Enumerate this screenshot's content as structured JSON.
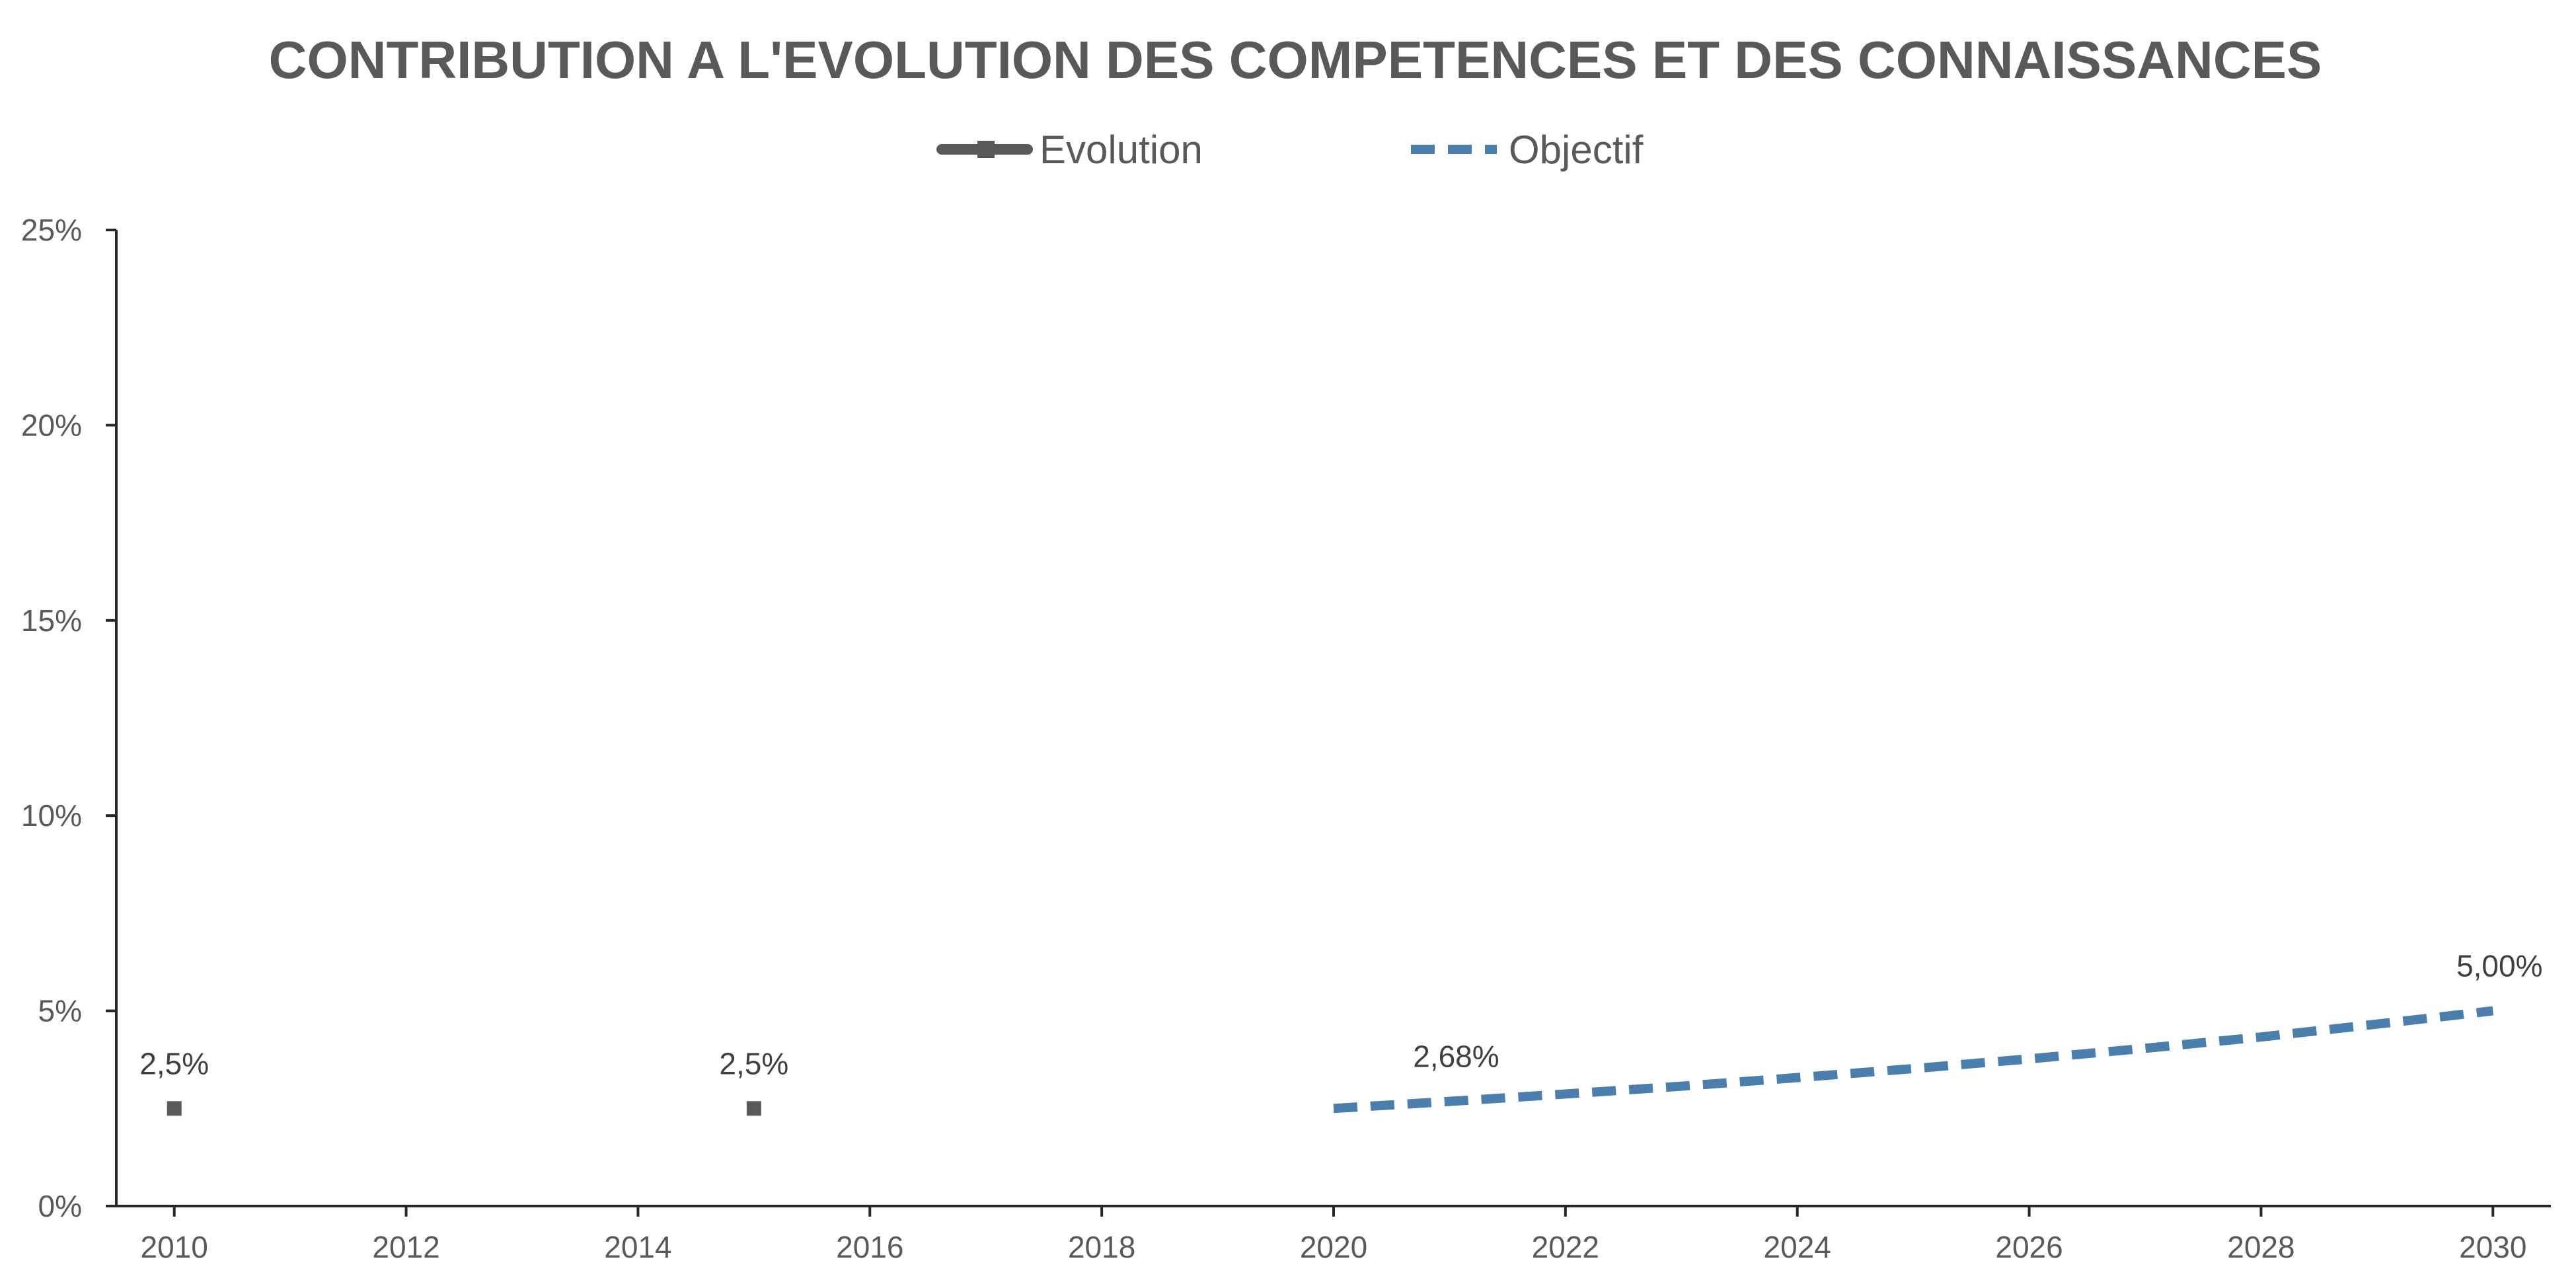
{
  "chart_data": {
    "type": "line",
    "title": "CONTRIBUTION A L'EVOLUTION DES COMPETENCES ET DES CONNAISSANCES",
    "xlabel": "",
    "ylabel": "",
    "xlim": [
      2009.5,
      2030.5
    ],
    "ylim": [
      0,
      25
    ],
    "x_ticks": [
      "2010",
      "2012",
      "2014",
      "2016",
      "2018",
      "2020",
      "2022",
      "2024",
      "2026",
      "2028",
      "2030"
    ],
    "y_ticks": [
      "0%",
      "5%",
      "10%",
      "15%",
      "20%",
      "25%"
    ],
    "grid": false,
    "legend_position": "top",
    "series": [
      {
        "name": "Evolution",
        "style": "solid",
        "color": "#595959",
        "marker": "square",
        "points": [
          {
            "x": 2010,
            "y": 2.5,
            "label": "2,5%"
          },
          {
            "x": 2015,
            "y": 2.5,
            "label": "2,5%"
          }
        ]
      },
      {
        "name": "Objectif",
        "style": "dashed",
        "color": "#4a7ead",
        "marker": "none",
        "points": [
          {
            "x": 2020,
            "y": 2.5,
            "label": ""
          },
          {
            "x": 2021,
            "y": 2.68,
            "label": "2,68%"
          },
          {
            "x": 2022,
            "y": 2.87,
            "label": ""
          },
          {
            "x": 2023,
            "y": 3.07,
            "label": ""
          },
          {
            "x": 2024,
            "y": 3.29,
            "label": ""
          },
          {
            "x": 2025,
            "y": 3.52,
            "label": ""
          },
          {
            "x": 2026,
            "y": 3.77,
            "label": ""
          },
          {
            "x": 2027,
            "y": 4.04,
            "label": ""
          },
          {
            "x": 2028,
            "y": 4.33,
            "label": ""
          },
          {
            "x": 2029,
            "y": 4.66,
            "label": ""
          },
          {
            "x": 2030,
            "y": 5.0,
            "label": "5,00%"
          }
        ]
      }
    ]
  }
}
